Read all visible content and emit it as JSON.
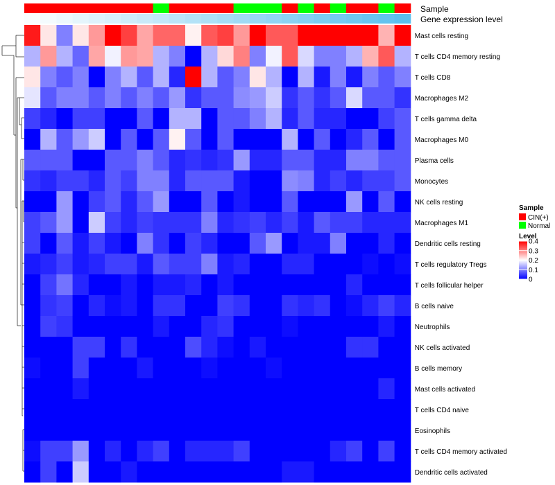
{
  "chart_data": {
    "type": "heatmap",
    "title": "",
    "annotation_titles": [
      "Sample",
      "Gene expression level"
    ],
    "sample_groups": [
      "CIN(+)",
      "CIN(+)",
      "CIN(+)",
      "CIN(+)",
      "CIN(+)",
      "CIN(+)",
      "CIN(+)",
      "CIN(+)",
      "Normal",
      "CIN(+)",
      "CIN(+)",
      "CIN(+)",
      "CIN(+)",
      "Normal",
      "Normal",
      "Normal",
      "CIN(+)",
      "Normal",
      "CIN(+)",
      "Normal",
      "CIN(+)",
      "CIN(+)",
      "Normal",
      "CIN(+)"
    ],
    "expression_gradient": [
      0.03,
      0.07,
      0.11,
      0.16,
      0.2,
      0.24,
      0.29,
      0.33,
      0.37,
      0.41,
      0.46,
      0.5,
      0.54,
      0.58,
      0.63,
      0.67,
      0.71,
      0.75,
      0.8,
      0.84,
      0.88,
      0.92,
      0.96,
      1.0
    ],
    "rows": [
      "Mast cells resting",
      "T cells CD4 memory resting",
      "T cells CD8",
      "Macrophages M2",
      "T cells gamma delta",
      "Macrophages M0",
      "Plasma cells",
      "Monocytes",
      "NK cells resting",
      "Macrophages M1",
      "Dendritic cells resting",
      "T cells regulatory  Tregs",
      "T cells follicular helper",
      "B cells naive",
      "Neutrophils",
      "NK cells activated",
      "B cells memory",
      "Mast cells activated",
      "T cells CD4 naive",
      "Eosinophils",
      "T cells CD4 memory activated",
      "Dendritic cells activated"
    ],
    "values": [
      [
        0.38,
        0.22,
        0.1,
        0.22,
        0.28,
        0.4,
        0.35,
        0.27,
        0.32,
        0.32,
        0.21,
        0.33,
        0.35,
        0.28,
        0.4,
        0.33,
        0.33,
        0.4,
        0.4,
        0.4,
        0.4,
        0.4,
        0.26,
        0.4
      ],
      [
        0.14,
        0.28,
        0.14,
        0.08,
        0.27,
        0.19,
        0.28,
        0.27,
        0.14,
        0.1,
        0.0,
        0.14,
        0.23,
        0.3,
        0.1,
        0.19,
        0.33,
        0.17,
        0.1,
        0.1,
        0.14,
        0.26,
        0.33,
        0.14
      ],
      [
        0.22,
        0.1,
        0.07,
        0.1,
        0.0,
        0.1,
        0.14,
        0.07,
        0.14,
        0.03,
        0.4,
        0.14,
        0.07,
        0.1,
        0.22,
        0.14,
        0.0,
        0.14,
        0.02,
        0.1,
        0.02,
        0.1,
        0.07,
        0.1
      ],
      [
        0.18,
        0.07,
        0.1,
        0.1,
        0.07,
        0.1,
        0.07,
        0.1,
        0.07,
        0.12,
        0.04,
        0.07,
        0.07,
        0.11,
        0.12,
        0.16,
        0.04,
        0.07,
        0.04,
        0.07,
        0.17,
        0.07,
        0.07,
        0.04
      ],
      [
        0.05,
        0.03,
        0.0,
        0.05,
        0.05,
        0.0,
        0.0,
        0.07,
        0.0,
        0.14,
        0.14,
        0.0,
        0.07,
        0.07,
        0.1,
        0.14,
        0.03,
        0.07,
        0.03,
        0.03,
        0.0,
        0.0,
        0.05,
        0.07
      ],
      [
        0.0,
        0.14,
        0.07,
        0.12,
        0.16,
        0.0,
        0.07,
        0.0,
        0.07,
        0.21,
        0.07,
        0.0,
        0.07,
        0.0,
        0.0,
        0.0,
        0.14,
        0.0,
        0.07,
        0.0,
        0.03,
        0.07,
        0.0,
        0.07
      ],
      [
        0.07,
        0.07,
        0.07,
        0.0,
        0.0,
        0.07,
        0.07,
        0.1,
        0.07,
        0.03,
        0.04,
        0.03,
        0.04,
        0.12,
        0.03,
        0.03,
        0.07,
        0.07,
        0.03,
        0.03,
        0.1,
        0.1,
        0.07,
        0.07
      ],
      [
        0.04,
        0.03,
        0.05,
        0.05,
        0.03,
        0.07,
        0.05,
        0.1,
        0.1,
        0.03,
        0.07,
        0.07,
        0.07,
        0.02,
        0.0,
        0.0,
        0.11,
        0.1,
        0.03,
        0.05,
        0.03,
        0.05,
        0.05,
        0.07
      ],
      [
        0.0,
        0.0,
        0.12,
        0.0,
        0.05,
        0.07,
        0.03,
        0.07,
        0.12,
        0.0,
        0.0,
        0.07,
        0.0,
        0.02,
        0.0,
        0.0,
        0.07,
        0.0,
        0.0,
        0.0,
        0.12,
        0.0,
        0.07,
        0.0
      ],
      [
        0.05,
        0.07,
        0.12,
        0.0,
        0.16,
        0.05,
        0.03,
        0.05,
        0.04,
        0.04,
        0.04,
        0.1,
        0.03,
        0.04,
        0.05,
        0.03,
        0.05,
        0.02,
        0.07,
        0.05,
        0.05,
        0.03,
        0.03,
        0.03
      ],
      [
        0.05,
        0.0,
        0.07,
        0.02,
        0.05,
        0.02,
        0.0,
        0.1,
        0.04,
        0.0,
        0.05,
        0.03,
        0.0,
        0.0,
        0.07,
        0.12,
        0.0,
        0.02,
        0.02,
        0.1,
        0.0,
        0.0,
        0.03,
        0.0
      ],
      [
        0.02,
        0.03,
        0.05,
        0.02,
        0.03,
        0.05,
        0.05,
        0.02,
        0.07,
        0.05,
        0.05,
        0.1,
        0.02,
        0.03,
        0.0,
        0.0,
        0.03,
        0.03,
        0.0,
        0.0,
        0.0,
        0.01,
        0.0,
        0.01
      ],
      [
        0.0,
        0.05,
        0.09,
        0.03,
        0.0,
        0.0,
        0.02,
        0.0,
        0.02,
        0.02,
        0.03,
        0.0,
        0.02,
        0.0,
        0.0,
        0.0,
        0.0,
        0.0,
        0.0,
        0.0,
        0.03,
        0.0,
        0.0,
        0.0
      ],
      [
        0.0,
        0.04,
        0.05,
        0.0,
        0.03,
        0.01,
        0.02,
        0.0,
        0.04,
        0.04,
        0.0,
        0.0,
        0.05,
        0.04,
        0.0,
        0.0,
        0.04,
        0.03,
        0.04,
        0.0,
        0.01,
        0.03,
        0.05,
        0.03
      ],
      [
        0.0,
        0.05,
        0.04,
        0.0,
        0.0,
        0.0,
        0.0,
        0.0,
        0.02,
        0.0,
        0.0,
        0.03,
        0.04,
        0.0,
        0.0,
        0.0,
        0.01,
        0.0,
        0.0,
        0.0,
        0.0,
        0.0,
        0.02,
        0.0
      ],
      [
        0.0,
        0.0,
        0.0,
        0.05,
        0.05,
        0.0,
        0.04,
        0.0,
        0.0,
        0.0,
        0.06,
        0.03,
        0.01,
        0.0,
        0.02,
        0.0,
        0.0,
        0.0,
        0.0,
        0.0,
        0.04,
        0.04,
        0.0,
        0.0
      ],
      [
        0.01,
        0.0,
        0.0,
        0.05,
        0.0,
        0.0,
        0.0,
        0.02,
        0.0,
        0.0,
        0.0,
        0.01,
        0.0,
        0.0,
        0.0,
        0.01,
        0.0,
        0.0,
        0.0,
        0.0,
        0.0,
        0.0,
        0.0,
        0.0
      ],
      [
        0.0,
        0.0,
        0.0,
        0.02,
        0.0,
        0.0,
        0.0,
        0.0,
        0.0,
        0.0,
        0.0,
        0.0,
        0.0,
        0.0,
        0.0,
        0.0,
        0.0,
        0.0,
        0.0,
        0.0,
        0.0,
        0.0,
        0.03,
        0.0
      ],
      [
        0.0,
        0.0,
        0.0,
        0.0,
        0.0,
        0.0,
        0.0,
        0.0,
        0.0,
        0.0,
        0.0,
        0.0,
        0.0,
        0.0,
        0.0,
        0.0,
        0.0,
        0.0,
        0.0,
        0.0,
        0.0,
        0.0,
        0.0,
        0.0
      ],
      [
        0.0,
        0.0,
        0.0,
        0.0,
        0.0,
        0.0,
        0.0,
        0.0,
        0.0,
        0.0,
        0.0,
        0.0,
        0.0,
        0.0,
        0.0,
        0.0,
        0.0,
        0.0,
        0.0,
        0.0,
        0.0,
        0.0,
        0.0,
        0.0
      ],
      [
        0.01,
        0.05,
        0.05,
        0.12,
        0.0,
        0.03,
        0.0,
        0.03,
        0.05,
        0.0,
        0.03,
        0.03,
        0.03,
        0.05,
        0.0,
        0.0,
        0.0,
        0.0,
        0.0,
        0.03,
        0.05,
        0.0,
        0.05,
        0.0
      ],
      [
        0.0,
        0.05,
        0.0,
        0.16,
        0.0,
        0.0,
        0.02,
        0.0,
        0.0,
        0.0,
        0.0,
        0.0,
        0.0,
        0.0,
        0.0,
        0.0,
        0.02,
        0.02,
        0.0,
        0.0,
        0.0,
        0.0,
        0.0,
        0.0
      ]
    ],
    "legend": {
      "sample_title": "Sample",
      "sample_entries": [
        {
          "label": "CIN(+)",
          "color": "#ff0000"
        },
        {
          "label": "Normal",
          "color": "#00ff00"
        }
      ],
      "level_title": "Level",
      "level_ticks": [
        "0.4",
        "0.3",
        "0.2",
        "0.1",
        "0"
      ],
      "level_tick_values": [
        0.4,
        0.3,
        0.2,
        0.1,
        0.0
      ],
      "level_range": [
        0,
        0.4
      ],
      "colors": {
        "low": "#0000ff",
        "mid": "#ffffff",
        "high": "#ff0000"
      }
    },
    "annotation_gradient_colors": {
      "start": "#ffffff",
      "end": "#5bc0ee"
    }
  }
}
